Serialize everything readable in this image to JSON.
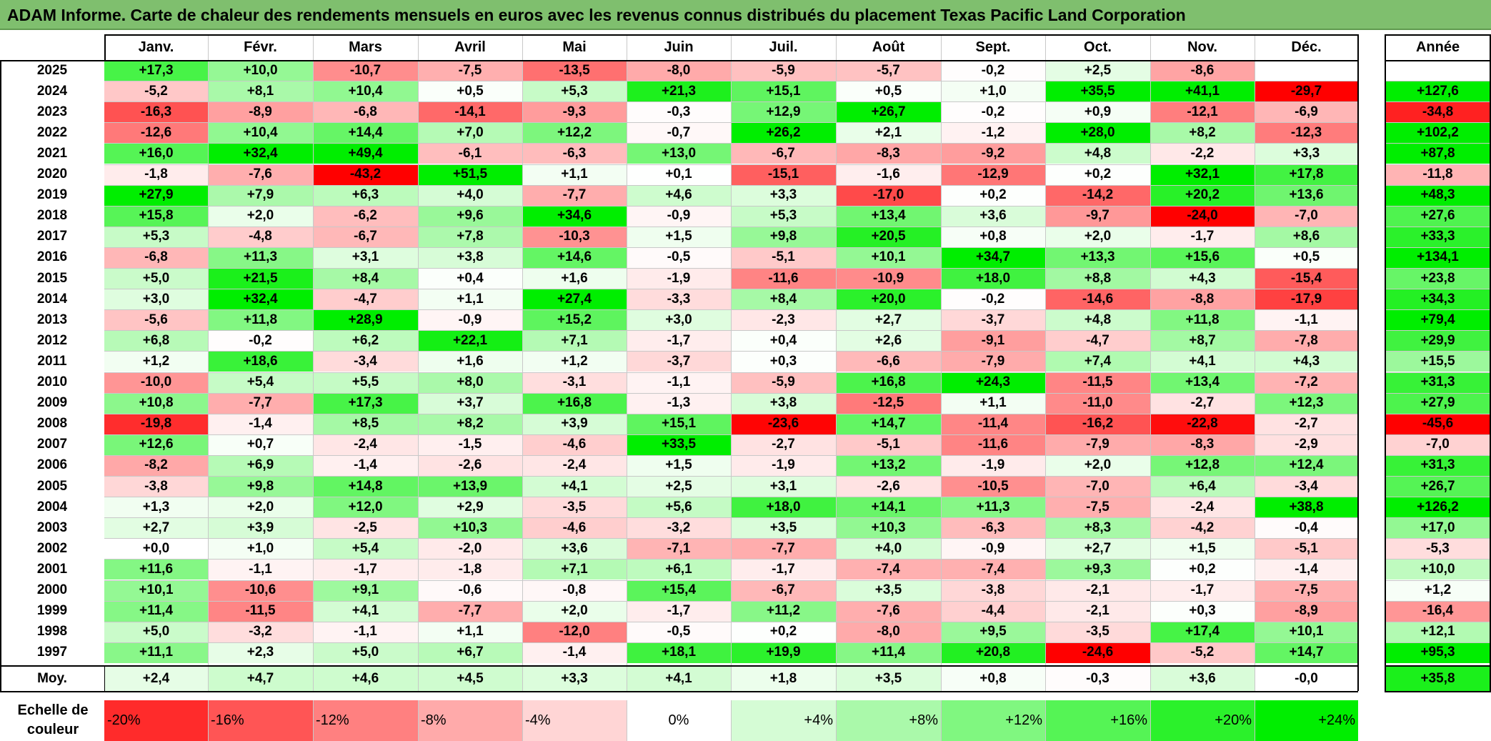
{
  "title": "ADAM Informe. Carte de chaleur des rendements mensuels en euros avec les revenus connus distribués du placement Texas Pacific Land Corporation",
  "chart_data": {
    "type": "heatmap",
    "columns": [
      "Janv.",
      "Févr.",
      "Mars",
      "Avril",
      "Mai",
      "Juin",
      "Juil.",
      "Août",
      "Sept.",
      "Oct.",
      "Nov.",
      "Déc."
    ],
    "annual_header": "Année",
    "rows": [
      {
        "year": "2025",
        "values": [
          "+17,3",
          "+10,0",
          "-10,7",
          "-7,5",
          "-13,5",
          "-8,0",
          "-5,9",
          "-5,7",
          "-0,2",
          "+2,5",
          "-8,6",
          ""
        ],
        "annual": ""
      },
      {
        "year": "2024",
        "values": [
          "-5,2",
          "+8,1",
          "+10,4",
          "+0,5",
          "+5,3",
          "+21,3",
          "+15,1",
          "+0,5",
          "+1,0",
          "+35,5",
          "+41,1",
          "-29,7"
        ],
        "annual": "+127,6"
      },
      {
        "year": "2023",
        "values": [
          "-16,3",
          "-8,9",
          "-6,8",
          "-14,1",
          "-9,3",
          "-0,3",
          "+12,9",
          "+26,7",
          "-0,2",
          "+0,9",
          "-12,1",
          "-6,9"
        ],
        "annual": "-34,8"
      },
      {
        "year": "2022",
        "values": [
          "-12,6",
          "+10,4",
          "+14,4",
          "+7,0",
          "+12,2",
          "-0,7",
          "+26,2",
          "+2,1",
          "-1,2",
          "+28,0",
          "+8,2",
          "-12,3"
        ],
        "annual": "+102,2"
      },
      {
        "year": "2021",
        "values": [
          "+16,0",
          "+32,4",
          "+49,4",
          "-6,1",
          "-6,3",
          "+13,0",
          "-6,7",
          "-8,3",
          "-9,2",
          "+4,8",
          "-2,2",
          "+3,3"
        ],
        "annual": "+87,8"
      },
      {
        "year": "2020",
        "values": [
          "-1,8",
          "-7,6",
          "-43,2",
          "+51,5",
          "+1,1",
          "+0,1",
          "-15,1",
          "-1,6",
          "-12,9",
          "+0,2",
          "+32,1",
          "+17,8"
        ],
        "annual": "-11,8"
      },
      {
        "year": "2019",
        "values": [
          "+27,9",
          "+7,9",
          "+6,3",
          "+4,0",
          "-7,7",
          "+4,6",
          "+3,3",
          "-17,0",
          "+0,2",
          "-14,2",
          "+20,2",
          "+13,6"
        ],
        "annual": "+48,3"
      },
      {
        "year": "2018",
        "values": [
          "+15,8",
          "+2,0",
          "-6,2",
          "+9,6",
          "+34,6",
          "-0,9",
          "+5,3",
          "+13,4",
          "+3,6",
          "-9,7",
          "-24,0",
          "-7,0"
        ],
        "annual": "+27,6"
      },
      {
        "year": "2017",
        "values": [
          "+5,3",
          "-4,8",
          "-6,7",
          "+7,8",
          "-10,3",
          "+1,5",
          "+9,8",
          "+20,5",
          "+0,8",
          "+2,0",
          "-1,7",
          "+8,6"
        ],
        "annual": "+33,3"
      },
      {
        "year": "2016",
        "values": [
          "-6,8",
          "+11,3",
          "+3,1",
          "+3,8",
          "+14,6",
          "-0,5",
          "-5,1",
          "+10,1",
          "+34,7",
          "+13,3",
          "+15,6",
          "+0,5"
        ],
        "annual": "+134,1"
      },
      {
        "year": "2015",
        "values": [
          "+5,0",
          "+21,5",
          "+8,4",
          "+0,4",
          "+1,6",
          "-1,9",
          "-11,6",
          "-10,9",
          "+18,0",
          "+8,8",
          "+4,3",
          "-15,4"
        ],
        "annual": "+23,8"
      },
      {
        "year": "2014",
        "values": [
          "+3,0",
          "+32,4",
          "-4,7",
          "+1,1",
          "+27,4",
          "-3,3",
          "+8,4",
          "+20,0",
          "-0,2",
          "-14,6",
          "-8,8",
          "-17,9"
        ],
        "annual": "+34,3"
      },
      {
        "year": "2013",
        "values": [
          "-5,6",
          "+11,8",
          "+28,9",
          "-0,9",
          "+15,2",
          "+3,0",
          "-2,3",
          "+2,7",
          "-3,7",
          "+4,8",
          "+11,8",
          "-1,1"
        ],
        "annual": "+79,4"
      },
      {
        "year": "2012",
        "values": [
          "+6,8",
          "-0,2",
          "+6,2",
          "+22,1",
          "+7,1",
          "-1,7",
          "+0,4",
          "+2,6",
          "-9,1",
          "-4,7",
          "+8,7",
          "-7,8"
        ],
        "annual": "+29,9"
      },
      {
        "year": "2011",
        "values": [
          "+1,2",
          "+18,6",
          "-3,4",
          "+1,6",
          "+1,2",
          "-3,7",
          "+0,3",
          "-6,6",
          "-7,9",
          "+7,4",
          "+4,1",
          "+4,3"
        ],
        "annual": "+15,5"
      },
      {
        "year": "2010",
        "values": [
          "-10,0",
          "+5,4",
          "+5,5",
          "+8,0",
          "-3,1",
          "-1,1",
          "-5,9",
          "+16,8",
          "+24,3",
          "-11,5",
          "+13,4",
          "-7,2"
        ],
        "annual": "+31,3"
      },
      {
        "year": "2009",
        "values": [
          "+10,8",
          "-7,7",
          "+17,3",
          "+3,7",
          "+16,8",
          "-1,3",
          "+3,8",
          "-12,5",
          "+1,1",
          "-11,0",
          "-2,7",
          "+12,3"
        ],
        "annual": "+27,9"
      },
      {
        "year": "2008",
        "values": [
          "-19,8",
          "-1,4",
          "+8,5",
          "+8,2",
          "+3,9",
          "+15,1",
          "-23,6",
          "+14,7",
          "-11,4",
          "-16,2",
          "-22,8",
          "-2,7"
        ],
        "annual": "-45,6"
      },
      {
        "year": "2007",
        "values": [
          "+12,6",
          "+0,7",
          "-2,4",
          "-1,5",
          "-4,6",
          "+33,5",
          "-2,7",
          "-5,1",
          "-11,6",
          "-7,9",
          "-8,3",
          "-2,9"
        ],
        "annual": "-7,0"
      },
      {
        "year": "2006",
        "values": [
          "-8,2",
          "+6,9",
          "-1,4",
          "-2,6",
          "-2,4",
          "+1,5",
          "-1,9",
          "+13,2",
          "-1,9",
          "+2,0",
          "+12,8",
          "+12,4"
        ],
        "annual": "+31,3"
      },
      {
        "year": "2005",
        "values": [
          "-3,8",
          "+9,8",
          "+14,8",
          "+13,9",
          "+4,1",
          "+2,5",
          "+3,1",
          "-2,6",
          "-10,5",
          "-7,0",
          "+6,4",
          "-3,4"
        ],
        "annual": "+26,7"
      },
      {
        "year": "2004",
        "values": [
          "+1,3",
          "+2,0",
          "+12,0",
          "+2,9",
          "-3,5",
          "+5,6",
          "+18,0",
          "+14,1",
          "+11,3",
          "-7,5",
          "-2,4",
          "+38,8"
        ],
        "annual": "+126,2"
      },
      {
        "year": "2003",
        "values": [
          "+2,7",
          "+3,9",
          "-2,5",
          "+10,3",
          "-4,6",
          "-3,2",
          "+3,5",
          "+10,3",
          "-6,3",
          "+8,3",
          "-4,2",
          "-0,4"
        ],
        "annual": "+17,0"
      },
      {
        "year": "2002",
        "values": [
          "+0,0",
          "+1,0",
          "+5,4",
          "-2,0",
          "+3,6",
          "-7,1",
          "-7,7",
          "+4,0",
          "-0,9",
          "+2,7",
          "+1,5",
          "-5,1"
        ],
        "annual": "-5,3"
      },
      {
        "year": "2001",
        "values": [
          "+11,6",
          "-1,1",
          "-1,7",
          "-1,8",
          "+7,1",
          "+6,1",
          "-1,7",
          "-7,4",
          "-7,4",
          "+9,3",
          "+0,2",
          "-1,4"
        ],
        "annual": "+10,0"
      },
      {
        "year": "2000",
        "values": [
          "+10,1",
          "-10,6",
          "+9,1",
          "-0,6",
          "-0,8",
          "+15,4",
          "-6,7",
          "+3,5",
          "-3,8",
          "-2,1",
          "-1,7",
          "-7,5"
        ],
        "annual": "+1,2"
      },
      {
        "year": "1999",
        "values": [
          "+11,4",
          "-11,5",
          "+4,1",
          "-7,7",
          "+2,0",
          "-1,7",
          "+11,2",
          "-7,6",
          "-4,4",
          "-2,1",
          "+0,3",
          "-8,9"
        ],
        "annual": "-16,4"
      },
      {
        "year": "1998",
        "values": [
          "+5,0",
          "-3,2",
          "-1,1",
          "+1,1",
          "-12,0",
          "-0,5",
          "+0,2",
          "-8,0",
          "+9,5",
          "-3,5",
          "+17,4",
          "+10,1"
        ],
        "annual": "+12,1"
      },
      {
        "year": "1997",
        "values": [
          "+11,1",
          "+2,3",
          "+5,0",
          "+6,7",
          "-1,4",
          "+18,1",
          "+19,9",
          "+11,4",
          "+20,8",
          "-24,6",
          "-5,2",
          "+14,7"
        ],
        "annual": "+95,3"
      }
    ],
    "average_row": {
      "label": "Moy.",
      "values": [
        "+2,4",
        "+4,7",
        "+4,6",
        "+4,5",
        "+3,3",
        "+4,1",
        "+1,8",
        "+3,5",
        "+0,8",
        "-0,3",
        "+3,6",
        "-0,0"
      ],
      "annual": "+35,8"
    },
    "scale": {
      "label": "Echelle de couleur",
      "steps": [
        "-20%",
        "-16%",
        "-12%",
        "-8%",
        "-4%",
        "0%",
        "+4%",
        "+8%",
        "+12%",
        "+16%",
        "+20%",
        "+24%"
      ]
    },
    "colors": {
      "negative_max": "#ff0000",
      "neutral": "#ffffff",
      "positive_max": "#00ee00"
    }
  }
}
